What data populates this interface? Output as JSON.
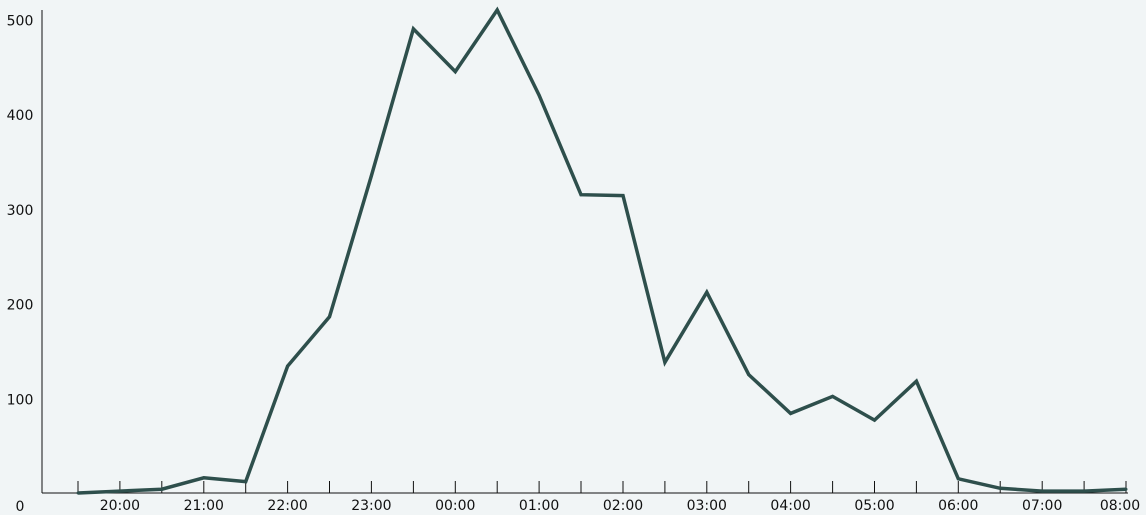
{
  "chart_data": {
    "type": "line",
    "title": "",
    "xlabel": "",
    "ylabel": "",
    "ylim": [
      0,
      510
    ],
    "y_ticks": [
      "0",
      "100",
      "200",
      "300",
      "400",
      "500"
    ],
    "x_tick_labels": [
      "20:00",
      "21:00",
      "22:00",
      "23:00",
      "00:00",
      "01:00",
      "02:00",
      "03:00",
      "04:00",
      "05:00",
      "06:00",
      "07:00",
      "08:00"
    ],
    "x": [
      "19:30",
      "20:00",
      "20:30",
      "21:00",
      "21:30",
      "22:00",
      "22:30",
      "23:00",
      "23:30",
      "00:00",
      "00:30",
      "01:00",
      "01:30",
      "02:00",
      "02:30",
      "03:00",
      "03:30",
      "04:00",
      "04:30",
      "05:00",
      "05:30",
      "06:00",
      "06:30",
      "07:00",
      "07:30",
      "08:00"
    ],
    "series": [
      {
        "values": [
          0,
          2,
          4,
          16,
          12,
          134,
          186,
          335,
          490,
          445,
          510,
          420,
          315,
          314,
          138,
          212,
          125,
          84,
          102,
          77,
          118,
          15,
          5,
          2,
          2,
          4
        ]
      }
    ],
    "grid": false,
    "colors": {
      "line": "#2e4f4c",
      "axis": "#111111",
      "background": "#f1f5f6"
    }
  }
}
